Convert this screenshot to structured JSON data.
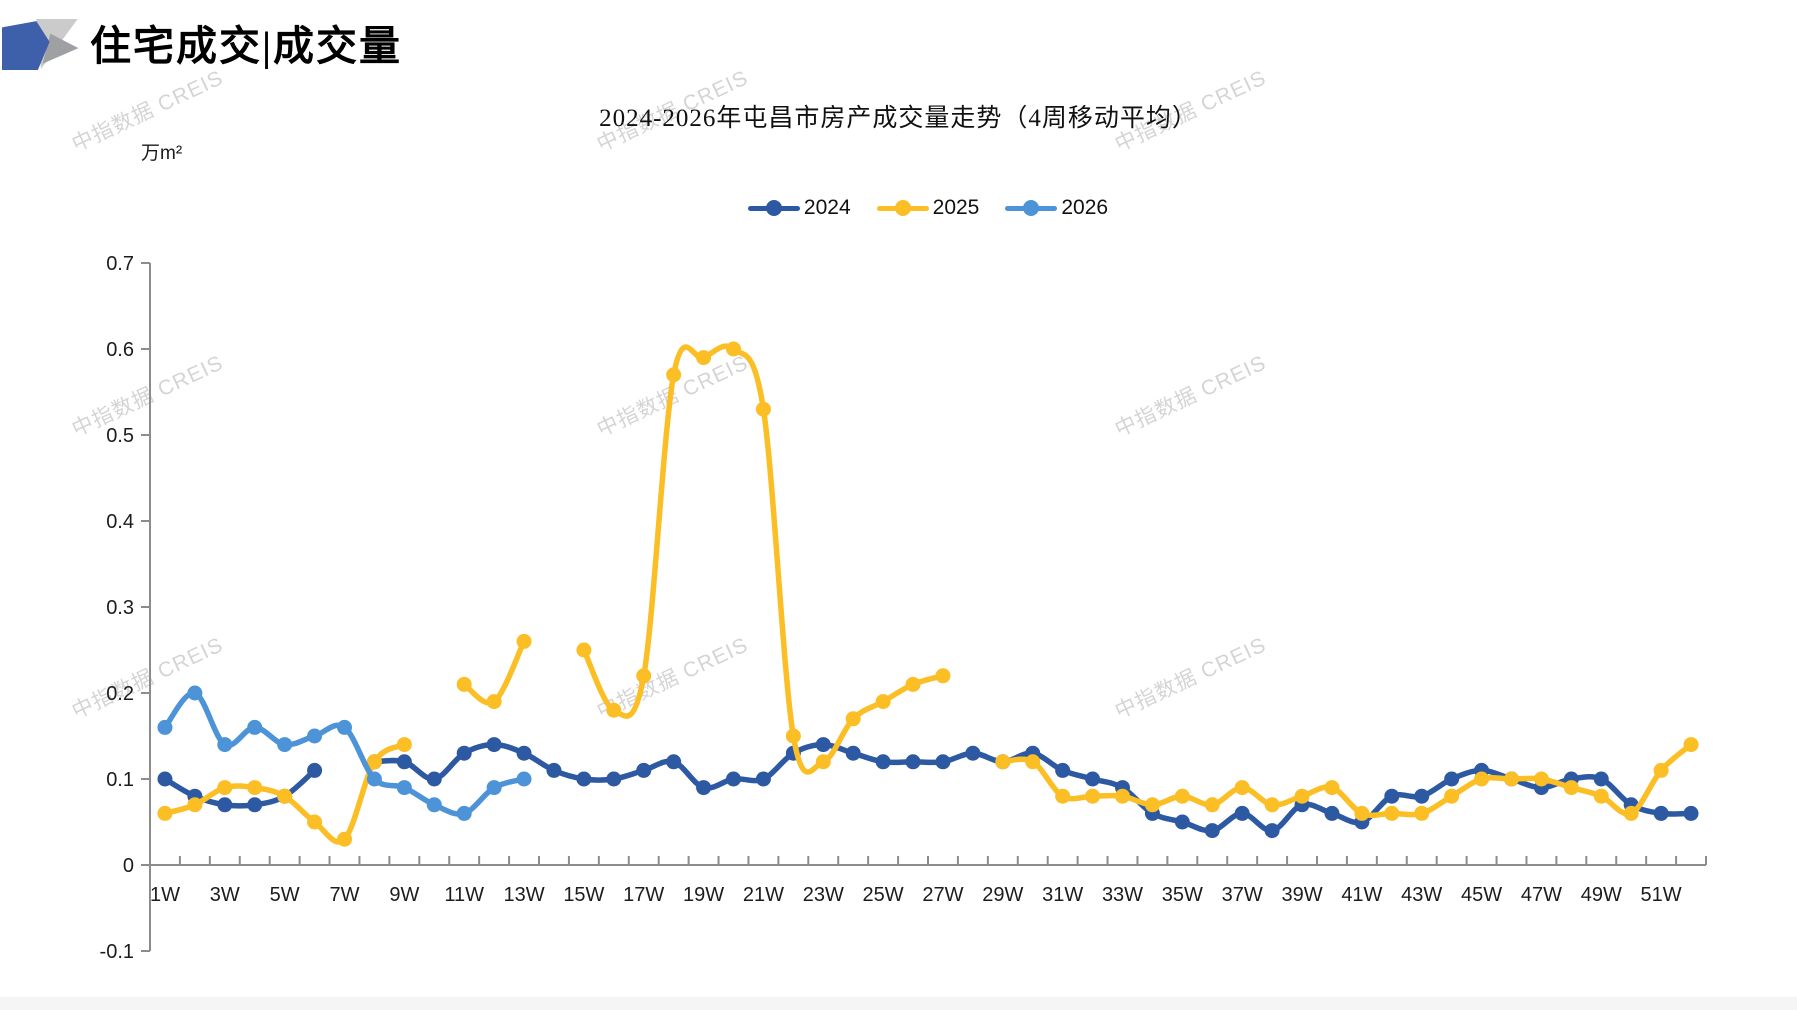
{
  "page": {
    "header_title": "住宅成交|成交量",
    "watermark_text": "中指数据 CREIS"
  },
  "chart_data": {
    "type": "line",
    "title": "2024-2026年屯昌市房产成交量走势（4周移动平均）",
    "unit_label": "万m²",
    "xlabel": "",
    "ylabel": "万m²",
    "ylim": [
      -0.1,
      0.7
    ],
    "ytick_labels": [
      "0.7",
      "0.6",
      "0.5",
      "0.4",
      "0.3",
      "0.2",
      "0.1",
      "0",
      "-0.1"
    ],
    "ytick_values": [
      0.7,
      0.6,
      0.5,
      0.4,
      0.3,
      0.2,
      0.1,
      0,
      -0.1
    ],
    "xtick_labels": [
      "1W",
      "3W",
      "5W",
      "7W",
      "9W",
      "11W",
      "13W",
      "15W",
      "17W",
      "19W",
      "21W",
      "23W",
      "25W",
      "27W",
      "29W",
      "31W",
      "33W",
      "35W",
      "37W",
      "39W",
      "41W",
      "43W",
      "45W",
      "47W",
      "49W",
      "51W"
    ],
    "categories": [
      "1W",
      "2W",
      "3W",
      "4W",
      "5W",
      "6W",
      "7W",
      "8W",
      "9W",
      "10W",
      "11W",
      "12W",
      "13W",
      "14W",
      "15W",
      "16W",
      "17W",
      "18W",
      "19W",
      "20W",
      "21W",
      "22W",
      "23W",
      "24W",
      "25W",
      "26W",
      "27W",
      "28W",
      "29W",
      "30W",
      "31W",
      "32W",
      "33W",
      "34W",
      "35W",
      "36W",
      "37W",
      "38W",
      "39W",
      "40W",
      "41W",
      "42W",
      "43W",
      "44W",
      "45W",
      "46W",
      "47W",
      "48W",
      "49W",
      "50W",
      "51W",
      "52W"
    ],
    "grid": false,
    "legend_position": "top",
    "smooth": true,
    "axis_color": "#8c8c8c",
    "series": [
      {
        "name": "2024",
        "color": "#2d59a2",
        "values": [
          0.1,
          0.08,
          0.07,
          0.07,
          0.08,
          0.11,
          null,
          0.12,
          0.12,
          0.1,
          0.13,
          0.14,
          0.13,
          0.11,
          0.1,
          0.1,
          0.11,
          0.12,
          0.09,
          0.1,
          0.1,
          0.13,
          0.14,
          0.13,
          0.12,
          0.12,
          0.12,
          0.13,
          0.12,
          0.13,
          0.11,
          0.1,
          0.09,
          0.06,
          0.05,
          0.04,
          0.06,
          0.04,
          0.07,
          0.06,
          0.05,
          0.08,
          0.08,
          0.1,
          0.11,
          0.1,
          0.09,
          0.1,
          0.1,
          0.07,
          0.06,
          0.06
        ]
      },
      {
        "name": "2025",
        "color": "#fbbe24",
        "values": [
          0.06,
          0.07,
          0.09,
          0.09,
          0.08,
          0.05,
          0.03,
          0.12,
          0.14,
          null,
          0.21,
          0.19,
          0.26,
          null,
          0.25,
          0.18,
          0.22,
          0.57,
          0.59,
          0.6,
          0.53,
          0.15,
          0.12,
          0.17,
          0.19,
          0.21,
          0.22,
          null,
          0.12,
          0.12,
          0.08,
          0.08,
          0.08,
          0.07,
          0.08,
          0.07,
          0.09,
          0.07,
          0.08,
          0.09,
          0.06,
          0.06,
          0.06,
          0.08,
          0.1,
          0.1,
          0.1,
          0.09,
          0.08,
          0.06,
          0.11,
          0.14
        ]
      },
      {
        "name": "2026",
        "color": "#4d93d8",
        "values": [
          0.16,
          0.2,
          0.14,
          0.16,
          0.14,
          0.15,
          0.16,
          0.1,
          0.09,
          0.07,
          0.06,
          0.09,
          0.1
        ]
      }
    ]
  }
}
